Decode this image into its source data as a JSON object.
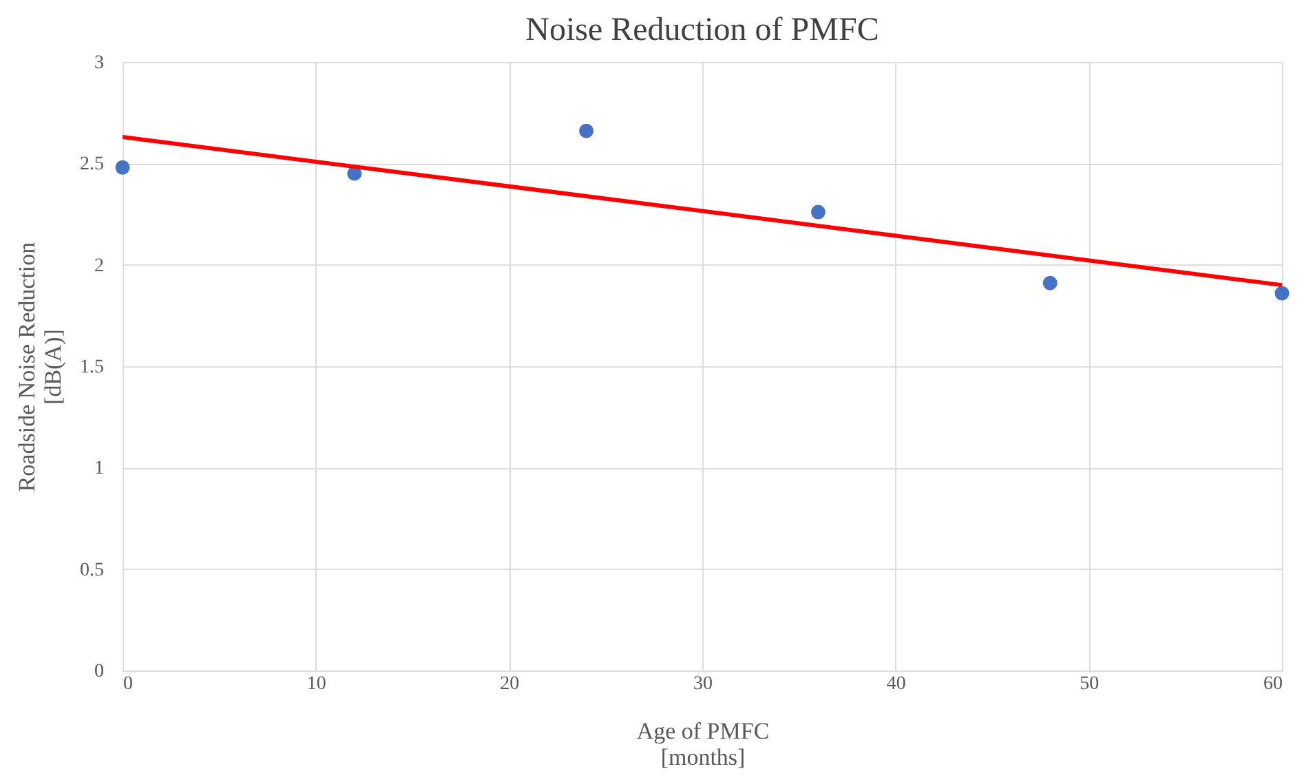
{
  "chart_data": {
    "type": "scatter",
    "title": "Noise Reduction of PMFC",
    "xlabel": "Age of PMFC\n[months]",
    "ylabel": "Roadside Noise Reduction\n[dB(A)]",
    "x": [
      0,
      12,
      24,
      36,
      48,
      60
    ],
    "series": [
      {
        "color": "#4472c4",
        "values": [
          2.48,
          2.45,
          2.66,
          2.26,
          1.91,
          1.86
        ],
        "marker": "circle"
      },
      {
        "type": "line",
        "color": "#ff0000",
        "x": [
          0,
          60
        ],
        "values": [
          2.63,
          1.9
        ],
        "marker": "none",
        "line_style": "solid"
      }
    ],
    "xlim": [
      0,
      60
    ],
    "xticks": [
      0,
      10,
      20,
      30,
      40,
      50,
      60
    ],
    "ylim": [
      0,
      3
    ],
    "yticks": [
      0,
      0.5,
      1,
      1.5,
      2,
      2.5,
      3
    ],
    "grid": true
  }
}
